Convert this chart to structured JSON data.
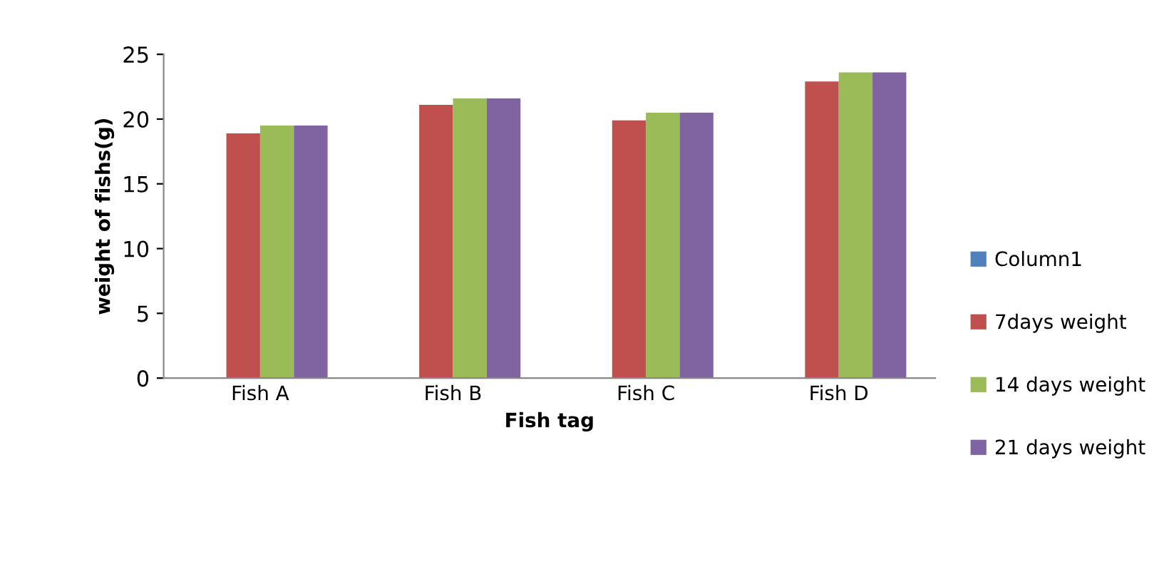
{
  "chart_data": {
    "type": "bar",
    "xlabel": "Fish tag",
    "ylabel": "weight of fishs(g)",
    "categories": [
      "Fish A",
      "Fish B",
      "Fish C",
      "Fish D"
    ],
    "series": [
      {
        "name": "Column1",
        "color": "#4f81bd",
        "values": [
          null,
          null,
          null,
          null
        ]
      },
      {
        "name": "7days weight",
        "color": "#c0504d",
        "values": [
          18.9,
          21.1,
          19.9,
          22.9
        ]
      },
      {
        "name": "14 days weight",
        "color": "#9bbb59",
        "values": [
          19.5,
          21.6,
          20.5,
          23.6
        ]
      },
      {
        "name": "21 days weight",
        "color": "#8064a2",
        "values": [
          19.5,
          21.6,
          20.5,
          23.6
        ]
      }
    ],
    "ylim": [
      0,
      25
    ],
    "yticks": [
      0,
      5,
      10,
      15,
      20,
      25
    ],
    "grid": false,
    "legend": "right"
  }
}
